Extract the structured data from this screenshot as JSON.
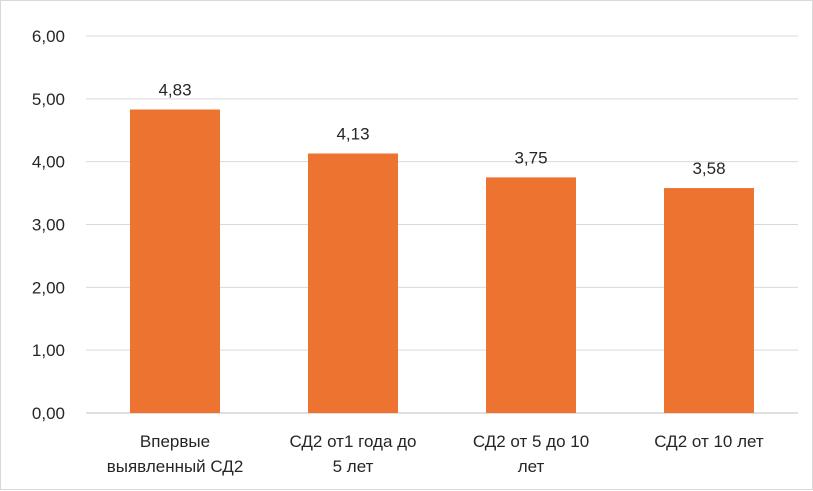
{
  "chart_data": {
    "type": "bar",
    "categories": [
      [
        "Впервые",
        "выявленный СД2"
      ],
      [
        "СД2 от1 года до",
        "5 лет"
      ],
      [
        "СД2 от 5 до 10",
        "лет"
      ],
      [
        "СД2 от 10 лет"
      ]
    ],
    "values": [
      4.83,
      4.13,
      3.75,
      3.58
    ],
    "data_labels": [
      "4,83",
      "4,13",
      "3,75",
      "3,58"
    ],
    "yticks": [
      "0,00",
      "1,00",
      "2,00",
      "3,00",
      "4,00",
      "5,00",
      "6,00"
    ],
    "ylim": [
      0,
      6
    ],
    "grid": true,
    "legend": "none",
    "colors": {
      "bar": "#ED7331",
      "grid": "#d9d9d9",
      "axis": "#bfbfbf",
      "text": "#262626"
    }
  }
}
